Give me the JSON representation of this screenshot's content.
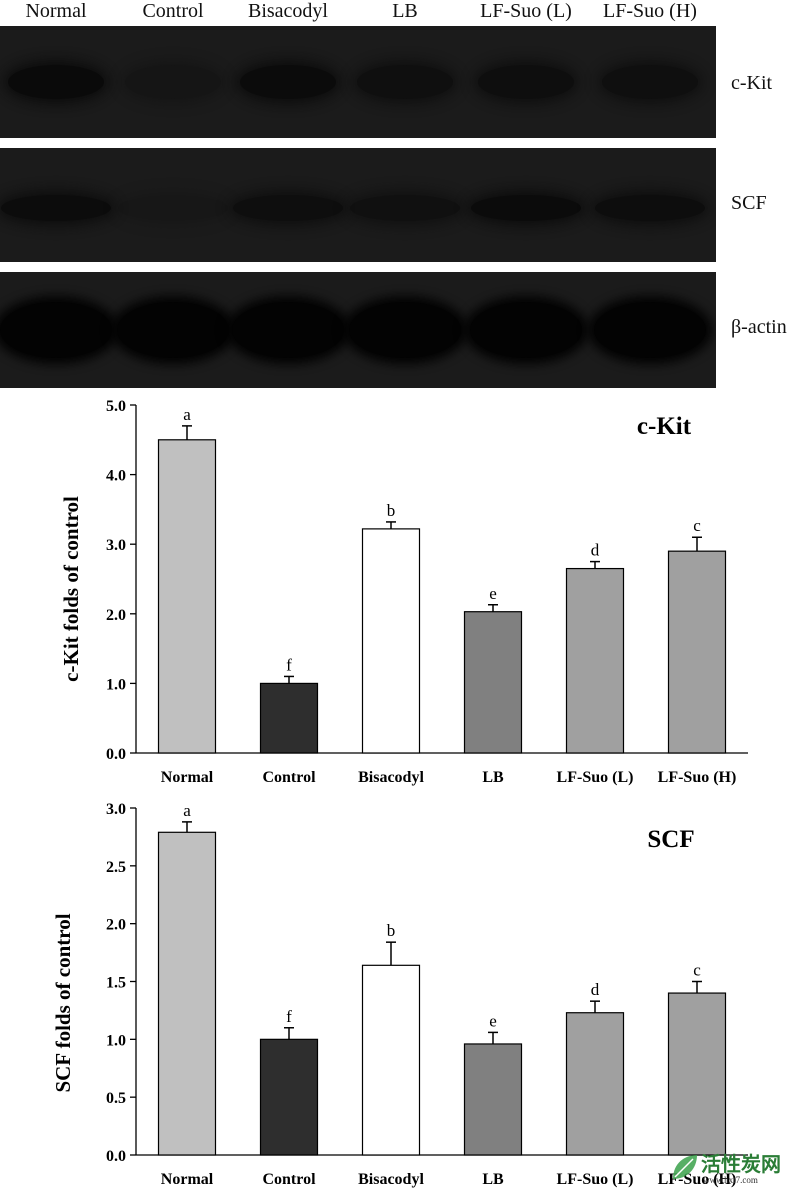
{
  "blot": {
    "lanes": [
      "Normal",
      "Control",
      "Bisacodyl",
      "LB",
      "LF-Suo (L)",
      "LF-Suo (H)"
    ],
    "panels": [
      {
        "label": "c-Kit",
        "intensity": [
          0.95,
          0.35,
          0.9,
          0.7,
          0.75,
          0.7
        ]
      },
      {
        "label": "SCF",
        "intensity": [
          0.85,
          0.2,
          0.75,
          0.6,
          0.9,
          0.8
        ]
      },
      {
        "label": "β-actin",
        "intensity": [
          1,
          1,
          1,
          1,
          1,
          1
        ]
      }
    ]
  },
  "chart_data": [
    {
      "type": "bar",
      "title": "c-Kit",
      "ylabel": "c-Kit folds of control",
      "categories": [
        "Normal",
        "Control",
        "Bisacodyl",
        "LB",
        "LF-Suo (L)",
        "LF-Suo (H)"
      ],
      "values": [
        4.5,
        1.0,
        3.22,
        2.03,
        2.65,
        2.9
      ],
      "errors": [
        0.2,
        0.1,
        0.1,
        0.1,
        0.1,
        0.2
      ],
      "letters": [
        "a",
        "f",
        "b",
        "e",
        "d",
        "c"
      ],
      "colors": [
        "#c0c0c0",
        "#2e2e2e",
        "#ffffff",
        "#808080",
        "#a0a0a0",
        "#a0a0a0"
      ],
      "ylim": [
        0,
        5
      ],
      "yticks": [
        "0.0",
        "1.0",
        "2.0",
        "3.0",
        "4.0",
        "5.0"
      ]
    },
    {
      "type": "bar",
      "title": "SCF",
      "ylabel": "SCF folds of control",
      "categories": [
        "Normal",
        "Control",
        "Bisacodyl",
        "LB",
        "LF-Suo (L)",
        "LF-Suo (H)"
      ],
      "values": [
        2.79,
        1.0,
        1.64,
        0.96,
        1.23,
        1.4
      ],
      "errors": [
        0.09,
        0.1,
        0.2,
        0.1,
        0.1,
        0.1
      ],
      "letters": [
        "a",
        "f",
        "b",
        "e",
        "d",
        "c"
      ],
      "colors": [
        "#c0c0c0",
        "#2e2e2e",
        "#ffffff",
        "#808080",
        "#a0a0a0",
        "#a0a0a0"
      ],
      "ylim": [
        0,
        3
      ],
      "yticks": [
        "0.0",
        "0.5",
        "1.0",
        "1.5",
        "2.0",
        "2.5",
        "3.0"
      ]
    }
  ],
  "watermark": {
    "text": "活性炭网",
    "url": "www.hxt7.com"
  }
}
